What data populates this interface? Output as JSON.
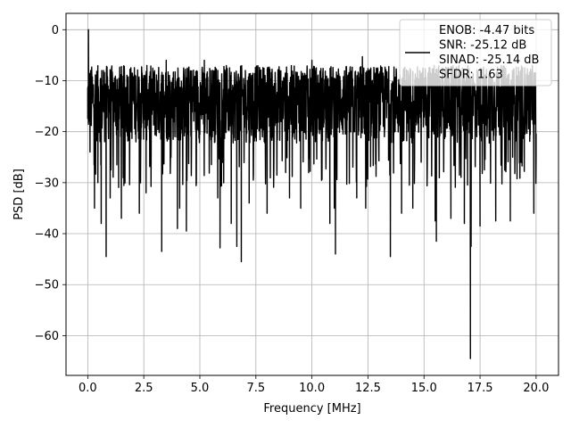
{
  "chart_data": {
    "type": "line",
    "xlabel": "Frequency [MHz]",
    "ylabel": "PSD [dB]",
    "xlim": [
      -0.97,
      21.0
    ],
    "ylim": [
      -67.8,
      3.2
    ],
    "xticks": [
      0.0,
      2.5,
      5.0,
      7.5,
      10.0,
      12.5,
      15.0,
      17.5,
      20.0
    ],
    "xtick_labels": [
      "0.0",
      "2.5",
      "5.0",
      "7.5",
      "10.0",
      "12.5",
      "15.0",
      "17.5",
      "20.0"
    ],
    "yticks": [
      0,
      -10,
      -20,
      -30,
      -40,
      -50,
      -60
    ],
    "ytick_labels": [
      "0",
      "−10",
      "−20",
      "−30",
      "−40",
      "−50",
      "−60"
    ],
    "grid": true,
    "legend": {
      "placement": "top-right",
      "entries": [
        "ENOB: -4.47 bits",
        "SNR: -25.12 dB",
        "SINAD: -25.14 dB",
        "SFDR: 1.63"
      ]
    },
    "series": [
      {
        "color": "#000000",
        "x_range": [
          0.0,
          20.0
        ],
        "typical_range_db": [
          -25,
          -7
        ],
        "points": [
          [
            0.0,
            -17.5
          ],
          [
            0.03,
            0.0
          ],
          [
            0.06,
            -10.0
          ],
          [
            0.1,
            -24.0
          ],
          [
            0.2,
            -14.0
          ],
          [
            0.3,
            -35.0
          ],
          [
            0.45,
            -30.0
          ],
          [
            0.6,
            -38.0
          ],
          [
            0.7,
            -8.0
          ],
          [
            0.82,
            -44.5
          ],
          [
            1.0,
            -33.0
          ],
          [
            1.2,
            -11.0
          ],
          [
            1.5,
            -37.0
          ],
          [
            2.3,
            -36.0
          ],
          [
            2.5,
            -9.0
          ],
          [
            2.6,
            -32.0
          ],
          [
            3.3,
            -43.5
          ],
          [
            3.5,
            -6.0
          ],
          [
            4.0,
            -39.0
          ],
          [
            4.1,
            -35.0
          ],
          [
            4.4,
            -39.5
          ],
          [
            5.2,
            -6.0
          ],
          [
            5.8,
            -33.0
          ],
          [
            5.9,
            -42.8
          ],
          [
            6.4,
            -38.0
          ],
          [
            6.65,
            -42.5
          ],
          [
            6.85,
            -45.5
          ],
          [
            7.2,
            -34.0
          ],
          [
            8.0,
            -36.0
          ],
          [
            9.0,
            -33.0
          ],
          [
            9.5,
            -35.0
          ],
          [
            10.0,
            -6.0
          ],
          [
            10.8,
            -38.0
          ],
          [
            11.0,
            -35.0
          ],
          [
            11.05,
            -44.0
          ],
          [
            12.0,
            -33.0
          ],
          [
            12.25,
            -5.3
          ],
          [
            12.4,
            -35.0
          ],
          [
            13.5,
            -44.5
          ],
          [
            14.0,
            -36.0
          ],
          [
            14.5,
            -35.0
          ],
          [
            15.5,
            -37.5
          ],
          [
            15.55,
            -41.5
          ],
          [
            16.2,
            -37.0
          ],
          [
            16.8,
            -38.0
          ],
          [
            17.07,
            -64.5
          ],
          [
            17.1,
            -42.5
          ],
          [
            17.5,
            -38.5
          ],
          [
            18.2,
            -37.5
          ],
          [
            18.85,
            -37.5
          ],
          [
            19.9,
            -36.0
          ],
          [
            20.0,
            -25.0
          ]
        ]
      }
    ]
  }
}
